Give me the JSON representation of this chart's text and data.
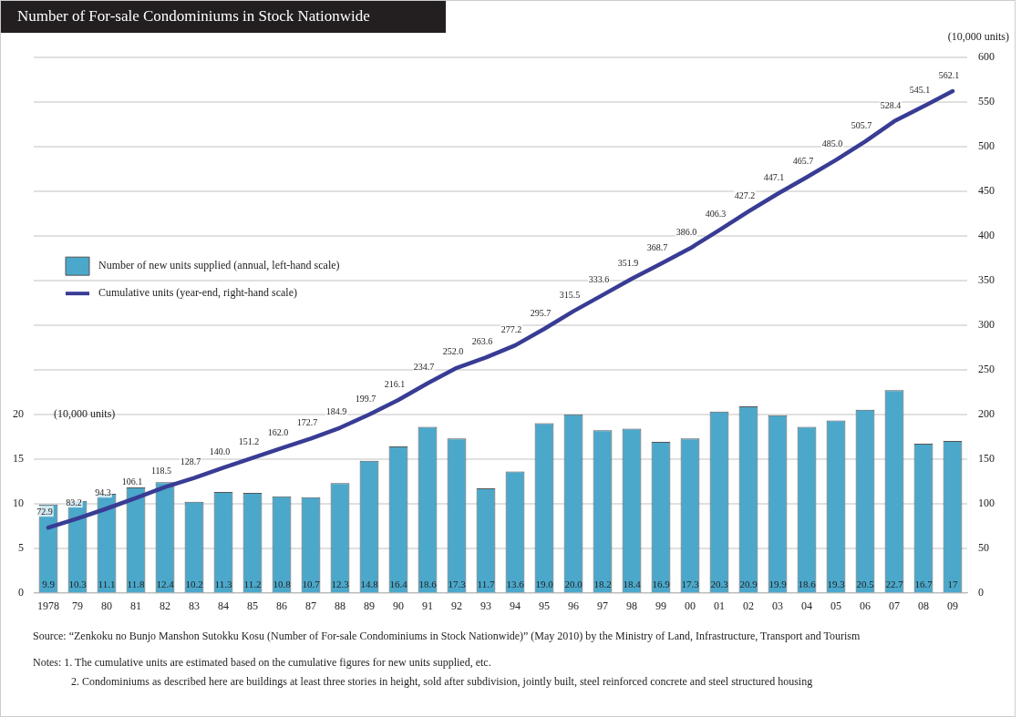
{
  "chart_data": {
    "type": "bar",
    "title": "Number of For-sale Condominiums in Stock Nationwide",
    "ylabel": "(10,000 units)",
    "y2label": "(10,000 units)",
    "categories": [
      "1978",
      "79",
      "80",
      "81",
      "82",
      "83",
      "84",
      "85",
      "86",
      "87",
      "88",
      "89",
      "90",
      "91",
      "92",
      "93",
      "94",
      "95",
      "96",
      "97",
      "98",
      "99",
      "00",
      "01",
      "02",
      "03",
      "04",
      "05",
      "06",
      "07",
      "08",
      "09"
    ],
    "series": [
      {
        "name": "Number of new units supplied (annual, left-hand scale)",
        "color": "#4ba8cb",
        "values": [
          9.9,
          10.3,
          11.1,
          11.8,
          12.4,
          10.2,
          11.3,
          11.2,
          10.8,
          10.7,
          12.3,
          14.8,
          16.4,
          18.6,
          17.3,
          11.7,
          13.6,
          19.0,
          20.0,
          18.2,
          18.4,
          16.9,
          17.3,
          20.3,
          20.9,
          19.9,
          18.6,
          19.3,
          20.5,
          22.7,
          16.7,
          17
        ],
        "value_labels": [
          "9.9",
          "10.3",
          "11.1",
          "11.8",
          "12.4",
          "10.2",
          "11.3",
          "11.2",
          "10.8",
          "10.7",
          "12.3",
          "14.8",
          "16.4",
          "18.6",
          "17.3",
          "11.7",
          "13.6",
          "19.0",
          "20.0",
          "18.2",
          "18.4",
          "16.9",
          "17.3",
          "20.3",
          "20.9",
          "19.9",
          "18.6",
          "19.3",
          "20.5",
          "22.7",
          "16.7",
          "17"
        ]
      },
      {
        "name": "Cumulative units (year-end, right-hand scale)",
        "type": "line",
        "axis": "y2",
        "color": "#383c94",
        "values": [
          72.9,
          83.2,
          94.3,
          106.1,
          118.5,
          128.7,
          140.0,
          151.2,
          162.0,
          172.7,
          184.9,
          199.7,
          216.1,
          234.7,
          252.0,
          263.6,
          277.2,
          295.7,
          315.5,
          333.6,
          351.9,
          368.7,
          386.0,
          406.3,
          427.2,
          447.1,
          465.7,
          485.0,
          505.7,
          528.4,
          545.1,
          562.1
        ],
        "value_labels": [
          "72.9",
          "83.2",
          "94.3",
          "106.1",
          "118.5",
          "128.7",
          "140.0",
          "151.2",
          "162.0",
          "172.7",
          "184.9",
          "199.7",
          "216.1",
          "234.7",
          "252.0",
          "263.6",
          "277.2",
          "295.7",
          "315.5",
          "333.6",
          "351.9",
          "368.7",
          "386.0",
          "406.3",
          "427.2",
          "447.1",
          "465.7",
          "485.0",
          "505.7",
          "528.4",
          "545.1",
          "562.1"
        ]
      }
    ],
    "ylim": [
      0,
      60
    ],
    "yticks": [
      0,
      5,
      10,
      15,
      20
    ],
    "y2lim": [
      0,
      600
    ],
    "y2ticks": [
      0,
      50,
      100,
      150,
      200,
      250,
      300,
      350,
      400,
      450,
      500,
      550,
      600
    ],
    "grid": "y",
    "legend": "left",
    "marker": "none",
    "line_style": "solid",
    "annotations": [
      "Source: “Zenkoku no Bunjo Manshon Sutokku Kosu (Number of For-sale Condominiums in Stock Nationwide)” (May 2010) by the Ministry of Land, Infrastructure, Transport and Tourism",
      "Notes:  1. The cumulative units are estimated based on the cumulative figures for new units supplied, etc.",
      "2. Condominiums as described here are buildings at least three stories in height, sold after subdivision, jointly built, steel reinforced concrete and steel structured housing"
    ]
  }
}
